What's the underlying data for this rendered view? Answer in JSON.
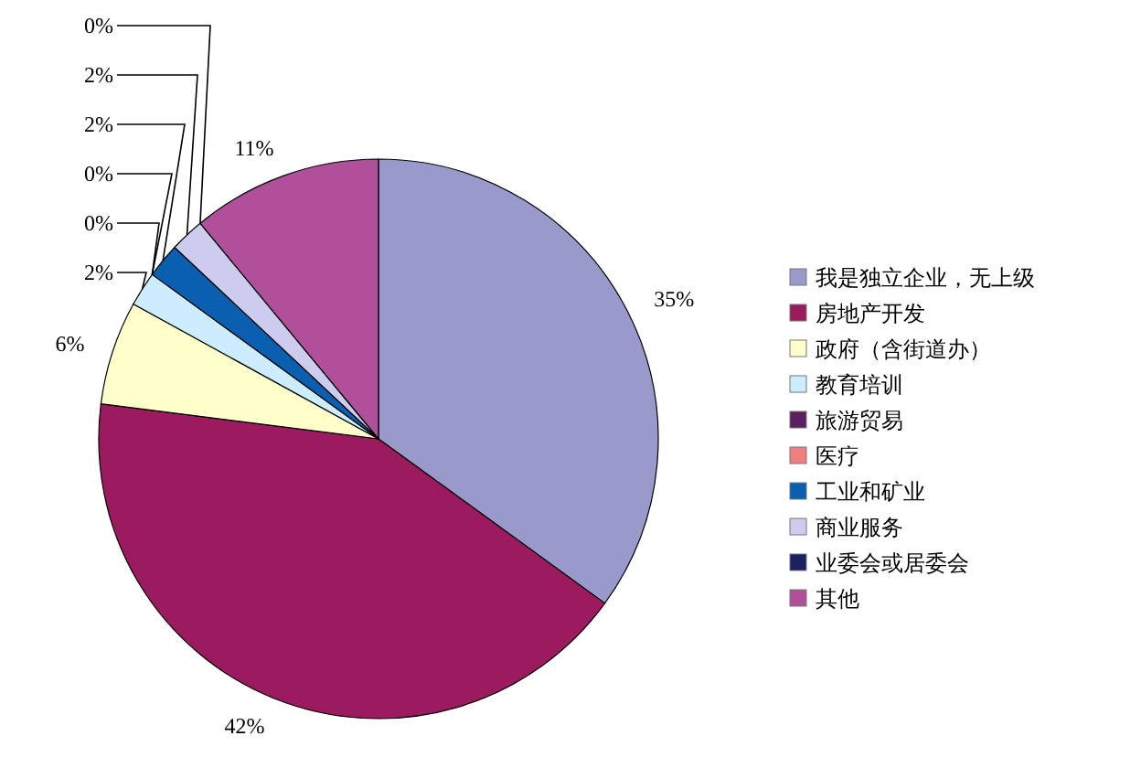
{
  "chart_data": {
    "type": "pie",
    "categories": [
      "我是独立企业，无上级",
      "房地产开发",
      "政府（含街道办）",
      "教育培训",
      "旅游贸易",
      "医疗",
      "工业和矿业",
      "商业服务",
      "业委会或居委会",
      "其他"
    ],
    "values": [
      35,
      42,
      6,
      2,
      0,
      0,
      2,
      2,
      0,
      11
    ],
    "value_labels": [
      "35%",
      "42%",
      "6%",
      "2%",
      "0%",
      "0%",
      "2%",
      "2%",
      "0%",
      "11%"
    ],
    "colors": [
      "#9999cc",
      "#9c1a5e",
      "#ffffcc",
      "#ccecff",
      "#5a2060",
      "#f08080",
      "#0a5fb0",
      "#ccccee",
      "#1a2060",
      "#b0509b"
    ],
    "legend": "right"
  }
}
